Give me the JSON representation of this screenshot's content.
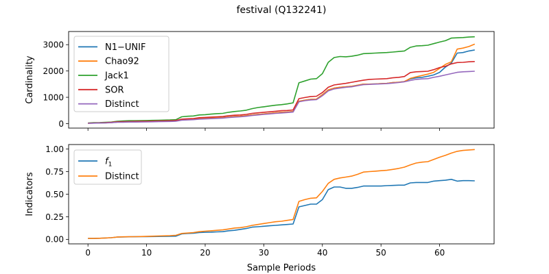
{
  "figure": {
    "title": "festival (Q132241)"
  },
  "chart_data": [
    {
      "type": "line",
      "ylabel": "Cardinality",
      "xlabel": "",
      "xlim": [
        -3.3,
        69.3
      ],
      "ylim": [
        -170,
        3500
      ],
      "xticks": [
        0,
        10,
        20,
        30,
        40,
        50,
        60
      ],
      "yticks": [
        0,
        1000,
        2000,
        3000
      ],
      "ytick_labels": [
        "0",
        "1000",
        "2000",
        "3000"
      ],
      "show_xtick_labels": false,
      "legend_position": "upper-left",
      "grid": false,
      "x": [
        0,
        1,
        2,
        3,
        4,
        5,
        6,
        7,
        8,
        9,
        10,
        11,
        12,
        13,
        14,
        15,
        16,
        17,
        18,
        19,
        20,
        21,
        22,
        23,
        24,
        25,
        26,
        27,
        28,
        29,
        30,
        31,
        32,
        33,
        34,
        35,
        36,
        37,
        38,
        39,
        40,
        41,
        42,
        43,
        44,
        45,
        46,
        47,
        48,
        49,
        50,
        51,
        52,
        53,
        54,
        55,
        56,
        57,
        58,
        59,
        60,
        61,
        62,
        63,
        64,
        65,
        66
      ],
      "series": [
        {
          "name": "N1−UNIF",
          "color": "#1f77b4",
          "values": [
            15,
            20,
            25,
            30,
            40,
            60,
            65,
            70,
            70,
            72,
            75,
            80,
            85,
            90,
            95,
            100,
            140,
            155,
            165,
            190,
            200,
            210,
            220,
            225,
            250,
            270,
            280,
            300,
            330,
            350,
            370,
            390,
            410,
            430,
            440,
            460,
            850,
            890,
            920,
            930,
            1100,
            1280,
            1350,
            1380,
            1400,
            1420,
            1460,
            1500,
            1500,
            1510,
            1520,
            1530,
            1560,
            1570,
            1600,
            1700,
            1740,
            1760,
            1800,
            1850,
            1950,
            2150,
            2300,
            2680,
            2700,
            2760,
            2800
          ]
        },
        {
          "name": "Chao92",
          "color": "#ff7f0e",
          "values": [
            15,
            20,
            25,
            30,
            40,
            60,
            65,
            70,
            70,
            72,
            75,
            80,
            85,
            90,
            95,
            100,
            140,
            155,
            165,
            190,
            200,
            210,
            220,
            225,
            250,
            270,
            280,
            300,
            330,
            350,
            370,
            390,
            410,
            430,
            440,
            460,
            850,
            890,
            920,
            930,
            1100,
            1280,
            1350,
            1380,
            1400,
            1420,
            1460,
            1500,
            1500,
            1510,
            1520,
            1530,
            1560,
            1570,
            1600,
            1720,
            1780,
            1830,
            1880,
            1950,
            2100,
            2250,
            2350,
            2830,
            2870,
            2930,
            3020
          ]
        },
        {
          "name": "Jack1",
          "color": "#2ca02c",
          "values": [
            25,
            35,
            40,
            50,
            60,
            90,
            100,
            110,
            110,
            115,
            120,
            125,
            130,
            135,
            140,
            150,
            260,
            280,
            290,
            330,
            340,
            360,
            380,
            390,
            430,
            460,
            480,
            510,
            570,
            610,
            640,
            670,
            700,
            720,
            750,
            790,
            1550,
            1620,
            1690,
            1710,
            1900,
            2330,
            2510,
            2550,
            2540,
            2560,
            2600,
            2660,
            2670,
            2680,
            2690,
            2700,
            2720,
            2740,
            2760,
            2900,
            2950,
            2960,
            2980,
            3040,
            3100,
            3150,
            3250,
            3260,
            3270,
            3290,
            3300
          ]
        },
        {
          "name": "SOR",
          "color": "#d62728",
          "values": [
            18,
            25,
            30,
            35,
            50,
            70,
            75,
            80,
            85,
            88,
            90,
            95,
            100,
            105,
            110,
            120,
            170,
            185,
            195,
            225,
            235,
            250,
            260,
            270,
            300,
            320,
            330,
            350,
            390,
            410,
            430,
            450,
            470,
            490,
            500,
            520,
            950,
            990,
            1030,
            1040,
            1180,
            1380,
            1470,
            1500,
            1530,
            1570,
            1610,
            1650,
            1680,
            1690,
            1700,
            1710,
            1740,
            1760,
            1790,
            1940,
            1970,
            1980,
            1990,
            2050,
            2130,
            2180,
            2270,
            2320,
            2330,
            2350,
            2360
          ]
        },
        {
          "name": "Distinct",
          "color": "#9467bd",
          "values": [
            12,
            18,
            22,
            26,
            35,
            50,
            55,
            58,
            60,
            62,
            65,
            70,
            74,
            78,
            82,
            90,
            130,
            140,
            150,
            170,
            180,
            190,
            200,
            210,
            230,
            250,
            260,
            280,
            310,
            330,
            350,
            370,
            390,
            405,
            420,
            440,
            830,
            870,
            900,
            910,
            1060,
            1240,
            1320,
            1350,
            1380,
            1400,
            1440,
            1480,
            1490,
            1500,
            1510,
            1520,
            1540,
            1560,
            1590,
            1640,
            1680,
            1700,
            1710,
            1760,
            1800,
            1850,
            1900,
            1950,
            1970,
            1980,
            1990
          ]
        }
      ]
    },
    {
      "type": "line",
      "ylabel": "Indicators",
      "xlabel": "Sample Periods",
      "xlim": [
        -3.3,
        69.3
      ],
      "ylim": [
        -0.05,
        1.05
      ],
      "xticks": [
        0,
        10,
        20,
        30,
        40,
        50,
        60
      ],
      "yticks": [
        0.0,
        0.25,
        0.5,
        0.75,
        1.0
      ],
      "ytick_labels": [
        "0.00",
        "0.25",
        "0.50",
        "0.75",
        "1.00"
      ],
      "show_xtick_labels": true,
      "legend_position": "upper-left",
      "grid": false,
      "x": [
        0,
        1,
        2,
        3,
        4,
        5,
        6,
        7,
        8,
        9,
        10,
        11,
        12,
        13,
        14,
        15,
        16,
        17,
        18,
        19,
        20,
        21,
        22,
        23,
        24,
        25,
        26,
        27,
        28,
        29,
        30,
        31,
        32,
        33,
        34,
        35,
        36,
        37,
        38,
        39,
        40,
        41,
        42,
        43,
        44,
        45,
        46,
        47,
        48,
        49,
        50,
        51,
        52,
        53,
        54,
        55,
        56,
        57,
        58,
        59,
        60,
        61,
        62,
        63,
        64,
        65,
        66
      ],
      "series": [
        {
          "name": "f1",
          "name_main": "f",
          "name_sub": "1",
          "color": "#1f77b4",
          "values": [
            0.01,
            0.01,
            0.012,
            0.015,
            0.018,
            0.025,
            0.027,
            0.028,
            0.029,
            0.03,
            0.03,
            0.031,
            0.032,
            0.033,
            0.034,
            0.035,
            0.06,
            0.065,
            0.068,
            0.075,
            0.078,
            0.08,
            0.083,
            0.085,
            0.095,
            0.1,
            0.11,
            0.12,
            0.135,
            0.14,
            0.145,
            0.15,
            0.155,
            0.16,
            0.165,
            0.17,
            0.36,
            0.375,
            0.39,
            0.39,
            0.44,
            0.55,
            0.58,
            0.58,
            0.565,
            0.565,
            0.575,
            0.59,
            0.59,
            0.59,
            0.59,
            0.595,
            0.597,
            0.6,
            0.6,
            0.625,
            0.63,
            0.63,
            0.63,
            0.645,
            0.65,
            0.655,
            0.665,
            0.645,
            0.65,
            0.65,
            0.648
          ]
        },
        {
          "name": "Distinct",
          "color": "#ff7f0e",
          "values": [
            0.01,
            0.01,
            0.012,
            0.015,
            0.018,
            0.025,
            0.028,
            0.029,
            0.03,
            0.031,
            0.033,
            0.035,
            0.037,
            0.039,
            0.041,
            0.045,
            0.065,
            0.07,
            0.075,
            0.085,
            0.09,
            0.095,
            0.1,
            0.105,
            0.115,
            0.125,
            0.13,
            0.14,
            0.155,
            0.165,
            0.175,
            0.185,
            0.195,
            0.2,
            0.21,
            0.22,
            0.42,
            0.44,
            0.455,
            0.46,
            0.53,
            0.62,
            0.665,
            0.68,
            0.69,
            0.7,
            0.72,
            0.745,
            0.75,
            0.755,
            0.76,
            0.765,
            0.775,
            0.785,
            0.8,
            0.825,
            0.845,
            0.855,
            0.86,
            0.885,
            0.91,
            0.93,
            0.955,
            0.975,
            0.985,
            0.99,
            0.995
          ]
        }
      ]
    }
  ]
}
